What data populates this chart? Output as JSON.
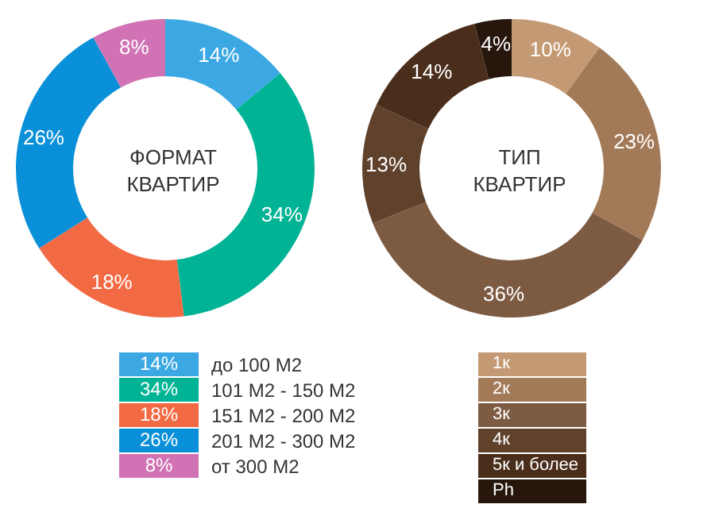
{
  "chart_data": [
    {
      "type": "donut",
      "title": "ФОРМАТ\nКВАРТИР",
      "categories": [
        "до 100 М2",
        "101 М2 - 150 М2",
        "151 М2 - 200 М2",
        "201 М2 - 300 М2",
        "от 300 М2"
      ],
      "values": [
        14,
        34,
        18,
        26,
        8
      ],
      "value_labels": [
        "14%",
        "34%",
        "18%",
        "26%",
        "8%"
      ],
      "colors": [
        "#3ca8e3",
        "#00b394",
        "#f26a44",
        "#0a90d8",
        "#d072b4"
      ],
      "legend": "bottom"
    },
    {
      "type": "donut",
      "title": "ТИП\nКВАРТИР",
      "categories": [
        "1к",
        "2к",
        "3к",
        "4к",
        "5к и более",
        "Ph"
      ],
      "values": [
        10,
        23,
        36,
        13,
        14,
        4
      ],
      "value_labels": [
        "10%",
        "23%",
        "36%",
        "13%",
        "14%",
        "4%"
      ],
      "colors": [
        "#c49a74",
        "#a27a58",
        "#7d5a42",
        "#5f412c",
        "#4a2e1b",
        "#26160b"
      ],
      "legend": "bottom"
    }
  ]
}
